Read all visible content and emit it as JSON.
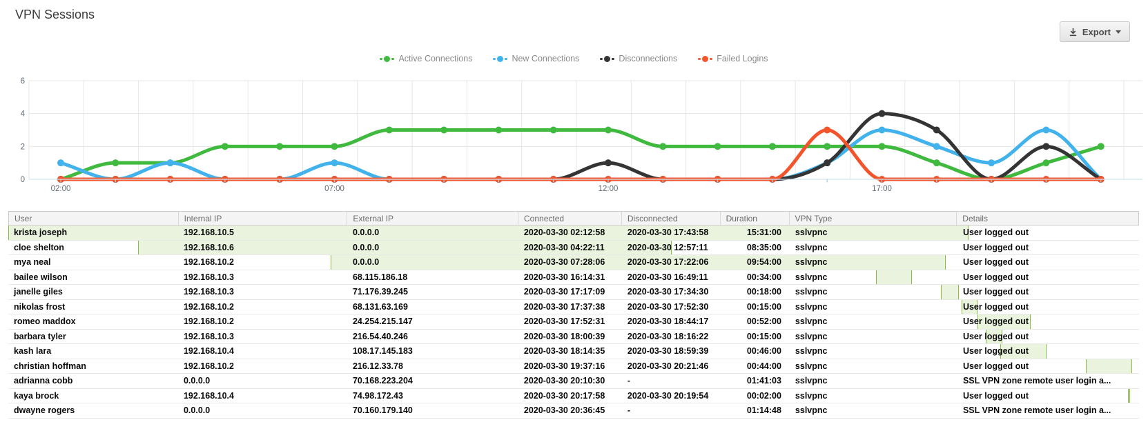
{
  "page": {
    "title": "VPN Sessions"
  },
  "toolbar": {
    "export_label": "Export"
  },
  "chart_data": {
    "type": "line",
    "title": "",
    "xlabel": "",
    "ylabel": "",
    "x_hours": [
      2,
      3,
      4,
      5,
      6,
      7,
      8,
      9,
      10,
      11,
      12,
      13,
      14,
      15,
      16,
      17,
      18,
      19,
      20,
      21
    ],
    "x_tick_hours": [
      2,
      7,
      12,
      17
    ],
    "x_tick_labels": [
      "02:00",
      "07:00",
      "12:00",
      "17:00"
    ],
    "y_ticks": [
      0,
      2,
      4,
      6
    ],
    "ylim": [
      0,
      6
    ],
    "grid": true,
    "legend_position": "top",
    "series": [
      {
        "name": "Active Connections",
        "color": "#3fba3f",
        "values": [
          0,
          1,
          1,
          2,
          2,
          2,
          3,
          3,
          3,
          3,
          3,
          2,
          2,
          2,
          2,
          2,
          1,
          0,
          1,
          2
        ]
      },
      {
        "name": "New Connections",
        "color": "#41b2ec",
        "values": [
          1,
          0,
          1,
          0,
          0,
          1,
          0,
          0,
          0,
          0,
          0,
          0,
          0,
          0,
          1,
          3,
          2,
          1,
          3,
          0
        ]
      },
      {
        "name": "Disconnections",
        "color": "#343434",
        "values": [
          0,
          0,
          0,
          0,
          0,
          0,
          0,
          0,
          0,
          0,
          1,
          0,
          0,
          0,
          1,
          4,
          3,
          0,
          2,
          0
        ]
      },
      {
        "name": "Failed Logins",
        "color": "#f2552c",
        "values": [
          0,
          0,
          0,
          0,
          0,
          0,
          0,
          0,
          0,
          0,
          0,
          0,
          0,
          0,
          3,
          0,
          0,
          0,
          0,
          0
        ]
      }
    ]
  },
  "table": {
    "columns": [
      {
        "label": "User",
        "width_pct": 15.02
      },
      {
        "label": "Internal IP",
        "width_pct": 14.96
      },
      {
        "label": "External IP",
        "width_pct": 15.14
      },
      {
        "label": "Connected",
        "width_pct": 9.16
      },
      {
        "label": "Disconnected",
        "width_pct": 8.73
      },
      {
        "label": "Duration",
        "width_pct": 6.11
      },
      {
        "label": "VPN Type",
        "width_pct": 14.84
      },
      {
        "label": "Details",
        "width_pct": 16.06
      }
    ],
    "rows": [
      {
        "user": "krista joseph",
        "internal_ip": "192.168.10.5",
        "external_ip": "0.0.0.0",
        "connected": "2020-03-30 02:12:58",
        "disconnected": "2020-03-30 17:43:58",
        "duration": "15:31:00",
        "vpn_type": "sslvpnc",
        "details": "User logged out"
      },
      {
        "user": "cloe shelton",
        "internal_ip": "192.168.10.6",
        "external_ip": "0.0.0.0",
        "connected": "2020-03-30 04:22:11",
        "disconnected": "2020-03-30 12:57:11",
        "duration": "08:35:00",
        "vpn_type": "sslvpnc",
        "details": "User logged out"
      },
      {
        "user": "mya neal",
        "internal_ip": "192.168.10.2",
        "external_ip": "0.0.0.0",
        "connected": "2020-03-30 07:28:06",
        "disconnected": "2020-03-30 17:22:06",
        "duration": "09:54:00",
        "vpn_type": "sslvpnc",
        "details": "User logged out"
      },
      {
        "user": "bailee wilson",
        "internal_ip": "192.168.10.3",
        "external_ip": "68.115.186.18",
        "connected": "2020-03-30 16:14:31",
        "disconnected": "2020-03-30 16:49:11",
        "duration": "00:34:00",
        "vpn_type": "sslvpnc",
        "details": "User logged out"
      },
      {
        "user": "janelle giles",
        "internal_ip": "192.168.10.3",
        "external_ip": "71.176.39.245",
        "connected": "2020-03-30 17:17:09",
        "disconnected": "2020-03-30 17:34:30",
        "duration": "00:18:00",
        "vpn_type": "sslvpnc",
        "details": "User logged out"
      },
      {
        "user": "nikolas frost",
        "internal_ip": "192.168.10.2",
        "external_ip": "68.131.63.169",
        "connected": "2020-03-30 17:37:38",
        "disconnected": "2020-03-30 17:52:30",
        "duration": "00:15:00",
        "vpn_type": "sslvpnc",
        "details": "User logged out"
      },
      {
        "user": "romeo maddox",
        "internal_ip": "192.168.10.2",
        "external_ip": "24.254.215.147",
        "connected": "2020-03-30 17:52:31",
        "disconnected": "2020-03-30 18:44:17",
        "duration": "00:52:00",
        "vpn_type": "sslvpnc",
        "details": "User logged out"
      },
      {
        "user": "barbara tyler",
        "internal_ip": "192.168.10.3",
        "external_ip": "216.54.40.246",
        "connected": "2020-03-30 18:00:39",
        "disconnected": "2020-03-30 18:16:22",
        "duration": "00:15:00",
        "vpn_type": "sslvpnc",
        "details": "User logged out"
      },
      {
        "user": "kash lara",
        "internal_ip": "192.168.10.4",
        "external_ip": "108.17.145.183",
        "connected": "2020-03-30 18:14:35",
        "disconnected": "2020-03-30 18:59:39",
        "duration": "00:46:00",
        "vpn_type": "sslvpnc",
        "details": "User logged out"
      },
      {
        "user": "christian hoffman",
        "internal_ip": "192.168.10.2",
        "external_ip": "216.12.33.78",
        "connected": "2020-03-30 19:37:16",
        "disconnected": "2020-03-30 20:21:46",
        "duration": "00:44:00",
        "vpn_type": "sslvpnc",
        "details": "User logged out"
      },
      {
        "user": "adrianna cobb",
        "internal_ip": "0.0.0.0",
        "external_ip": "70.168.223.204",
        "connected": "2020-03-30 20:10:30",
        "disconnected": "-",
        "duration": "01:41:03",
        "vpn_type": "sslvpnc",
        "details": "SSL VPN zone remote user login a..."
      },
      {
        "user": "kaya brock",
        "internal_ip": "192.168.10.4",
        "external_ip": "74.98.172.43",
        "connected": "2020-03-30 20:17:58",
        "disconnected": "2020-03-30 20:19:54",
        "duration": "00:02:00",
        "vpn_type": "sslvpnc",
        "details": "User logged out"
      },
      {
        "user": "dwayne rogers",
        "internal_ip": "0.0.0.0",
        "external_ip": "70.160.179.140",
        "connected": "2020-03-30 20:36:45",
        "disconnected": "-",
        "duration": "01:14:48",
        "vpn_type": "sslvpnc",
        "details": "SSL VPN zone remote user login a..."
      }
    ]
  },
  "colors": {
    "bar_fill": "rgba(134,191,66,0.18)",
    "bar_border": "#86bf42",
    "grid": "#e7e7e7",
    "axis_line": "#cfe3ee",
    "axis_tick": "#a9cde2",
    "axis_text": "#5f6b73",
    "legend_text": "#8a8a8a"
  }
}
